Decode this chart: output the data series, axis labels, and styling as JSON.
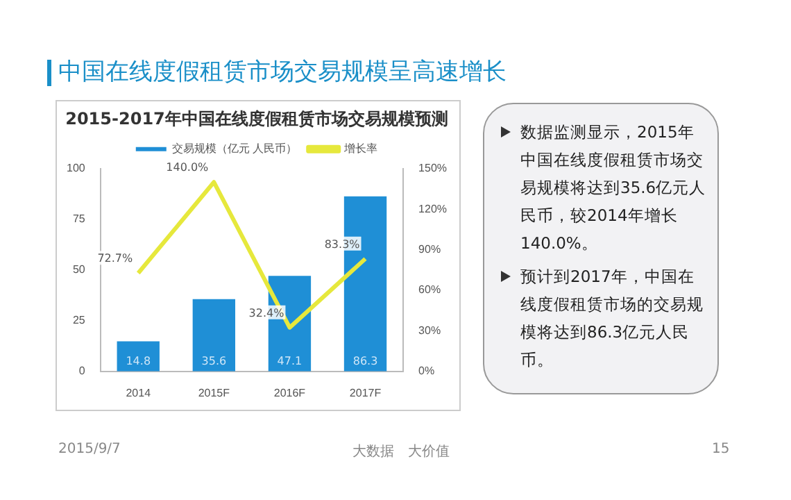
{
  "chart_data": {
    "type": "bar",
    "title": "2015-2017年中国在线度假租赁市场交易规模预测",
    "categories": [
      "2014",
      "2015F",
      "2016F",
      "2017F"
    ],
    "series": [
      {
        "name": "交易规模（亿元 人民币）",
        "color": "#1f8fd6",
        "values": [
          14.8,
          35.6,
          47.1,
          86.3
        ],
        "value_labels": [
          "14.8",
          "35.6",
          "47.1",
          "86.3"
        ]
      },
      {
        "name": "增长率",
        "type": "line",
        "axis": "y2",
        "color": "#e6e83c",
        "values": [
          72.7,
          140.0,
          32.4,
          83.3
        ],
        "value_labels": [
          "72.7%",
          "140.0%",
          "32.4%",
          "83.3%"
        ]
      }
    ],
    "ylim": [
      0,
      100
    ],
    "yticks": [
      0,
      25,
      50,
      75,
      100
    ],
    "y2lim": [
      0,
      150
    ],
    "y2ticks": [
      {
        "value": 0,
        "label": "0%"
      },
      {
        "value": 30,
        "label": "30%"
      },
      {
        "value": 60,
        "label": "60%"
      },
      {
        "value": 90,
        "label": "90%"
      },
      {
        "value": 120,
        "label": "120%"
      },
      {
        "value": 150,
        "label": "150%"
      }
    ],
    "legend": "top",
    "grid": false,
    "marker": "none",
    "annotations": [
      "中国在线度假租赁市场交易规模呈高速增长",
      "数据监测显示，2015年中国在线度假租赁市场交易规模将达到35.6亿元人民币，较2014年增长140.0%。",
      "预计到2017年，中国在线度假租赁市场的交易规模将达到86.3亿元人民币。",
      "2015/9/7",
      "大数据　大价值",
      "15"
    ]
  }
}
